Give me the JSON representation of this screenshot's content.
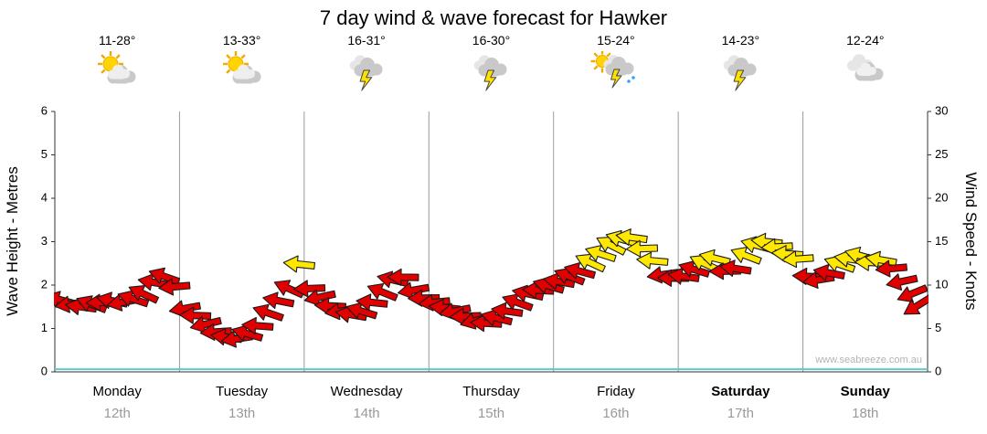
{
  "watermark": "www.seabreeze.com.au",
  "days": [
    {
      "name": "Monday",
      "date": "12th",
      "temp": "11-28°",
      "icon": "sun-cloud",
      "bold": false
    },
    {
      "name": "Tuesday",
      "date": "13th",
      "temp": "13-33°",
      "icon": "sun-cloud",
      "bold": false
    },
    {
      "name": "Wednesday",
      "date": "14th",
      "temp": "16-31°",
      "icon": "storm",
      "bold": false
    },
    {
      "name": "Thursday",
      "date": "15th",
      "temp": "16-30°",
      "icon": "storm",
      "bold": false
    },
    {
      "name": "Friday",
      "date": "16th",
      "temp": "15-24°",
      "icon": "sun-storm-rain",
      "bold": false
    },
    {
      "name": "Saturday",
      "date": "17th",
      "temp": "14-23°",
      "icon": "storm",
      "bold": true
    },
    {
      "name": "Sunday",
      "date": "18th",
      "temp": "12-24°",
      "icon": "cloudy",
      "bold": true
    }
  ],
  "chart_data": {
    "type": "scatter",
    "subtype": "wind-direction-arrows",
    "title": "7 day wind & wave forecast for Hawker",
    "x_axis": {
      "unit": "hours",
      "range": [
        0,
        168
      ],
      "day_labels": [
        "Monday",
        "Tuesday",
        "Wednesday",
        "Thursday",
        "Friday",
        "Saturday",
        "Sunday"
      ],
      "day_dates": [
        "12th",
        "13th",
        "14th",
        "15th",
        "16th",
        "17th",
        "18th"
      ]
    },
    "y_left": {
      "label": "Wave Height - Metres",
      "range": [
        0,
        6
      ],
      "ticks": [
        0,
        1,
        2,
        3,
        4,
        5,
        6
      ]
    },
    "y_right": {
      "label": "Wind Speed - Knots",
      "range": [
        0,
        30
      ],
      "ticks": [
        0,
        5,
        10,
        15,
        20,
        25,
        30
      ]
    },
    "wave_height_m": 0.06,
    "wave_color": "#5ecccc",
    "arrow_colors": {
      "below_threshold": "#e00000",
      "at_or_above_threshold": "#ffe800",
      "threshold_knots": 12,
      "outline": "#1a1a1a"
    },
    "wind_format": [
      "hours_from_start",
      "knots",
      "arrow_angle_deg"
    ],
    "wind": [
      [
        1,
        8.3,
        195
      ],
      [
        3,
        7.8,
        172
      ],
      [
        5,
        7.5,
        188
      ],
      [
        7,
        7.8,
        201
      ],
      [
        9,
        8.0,
        178
      ],
      [
        11,
        8.2,
        192
      ],
      [
        13,
        8.0,
        169
      ],
      [
        15,
        8.4,
        198
      ],
      [
        17,
        9.0,
        205
      ],
      [
        19,
        10.3,
        190
      ],
      [
        21,
        11.0,
        199
      ],
      [
        23,
        9.8,
        175
      ],
      [
        25,
        7.3,
        170
      ],
      [
        27,
        6.5,
        182
      ],
      [
        29,
        5.5,
        167
      ],
      [
        31,
        4.6,
        176
      ],
      [
        33,
        4.0,
        188
      ],
      [
        35,
        3.8,
        171
      ],
      [
        37,
        4.4,
        196
      ],
      [
        39,
        5.3,
        184
      ],
      [
        41,
        6.8,
        199
      ],
      [
        43,
        8.2,
        191
      ],
      [
        45,
        9.6,
        204
      ],
      [
        47,
        12.4,
        186
      ],
      [
        49,
        9.6,
        178
      ],
      [
        51,
        8.6,
        168
      ],
      [
        53,
        7.6,
        183
      ],
      [
        55,
        7.0,
        172
      ],
      [
        57,
        6.6,
        190
      ],
      [
        59,
        7.0,
        197
      ],
      [
        61,
        8.0,
        186
      ],
      [
        63,
        9.2,
        202
      ],
      [
        65,
        10.6,
        193
      ],
      [
        67,
        10.9,
        181
      ],
      [
        69,
        9.4,
        170
      ],
      [
        71,
        8.5,
        179
      ],
      [
        73,
        8.0,
        174
      ],
      [
        75,
        7.4,
        186
      ],
      [
        77,
        7.0,
        169
      ],
      [
        79,
        6.4,
        178
      ],
      [
        81,
        5.9,
        165
      ],
      [
        83,
        5.6,
        183
      ],
      [
        85,
        6.2,
        194
      ],
      [
        87,
        7.0,
        188
      ],
      [
        89,
        8.0,
        200
      ],
      [
        91,
        9.0,
        192
      ],
      [
        93,
        9.4,
        183
      ],
      [
        95,
        9.9,
        196
      ],
      [
        97,
        10.4,
        190
      ],
      [
        99,
        11.0,
        201
      ],
      [
        101,
        11.6,
        195
      ],
      [
        103,
        12.6,
        205
      ],
      [
        105,
        13.6,
        198
      ],
      [
        107,
        14.6,
        207
      ],
      [
        109,
        15.3,
        196
      ],
      [
        111,
        15.5,
        188
      ],
      [
        113,
        14.2,
        178
      ],
      [
        115,
        12.8,
        185
      ],
      [
        117,
        11.2,
        172
      ],
      [
        119,
        10.8,
        180
      ],
      [
        121,
        11.0,
        188
      ],
      [
        123,
        11.8,
        197
      ],
      [
        125,
        12.5,
        205
      ],
      [
        127,
        13.1,
        194
      ],
      [
        129,
        11.6,
        179
      ],
      [
        131,
        11.9,
        189
      ],
      [
        133,
        13.4,
        201
      ],
      [
        135,
        14.6,
        195
      ],
      [
        137,
        15.0,
        186
      ],
      [
        139,
        14.4,
        177
      ],
      [
        141,
        13.6,
        184
      ],
      [
        143,
        13.0,
        176
      ],
      [
        145,
        11.0,
        183
      ],
      [
        147,
        10.6,
        171
      ],
      [
        149,
        11.4,
        191
      ],
      [
        151,
        12.4,
        199
      ],
      [
        153,
        13.0,
        189
      ],
      [
        155,
        13.4,
        196
      ],
      [
        157,
        12.6,
        182
      ],
      [
        159,
        12.9,
        190
      ],
      [
        161,
        11.9,
        175
      ],
      [
        163,
        10.4,
        168
      ],
      [
        165,
        9.0,
        158
      ],
      [
        166,
        7.6,
        148
      ]
    ]
  }
}
